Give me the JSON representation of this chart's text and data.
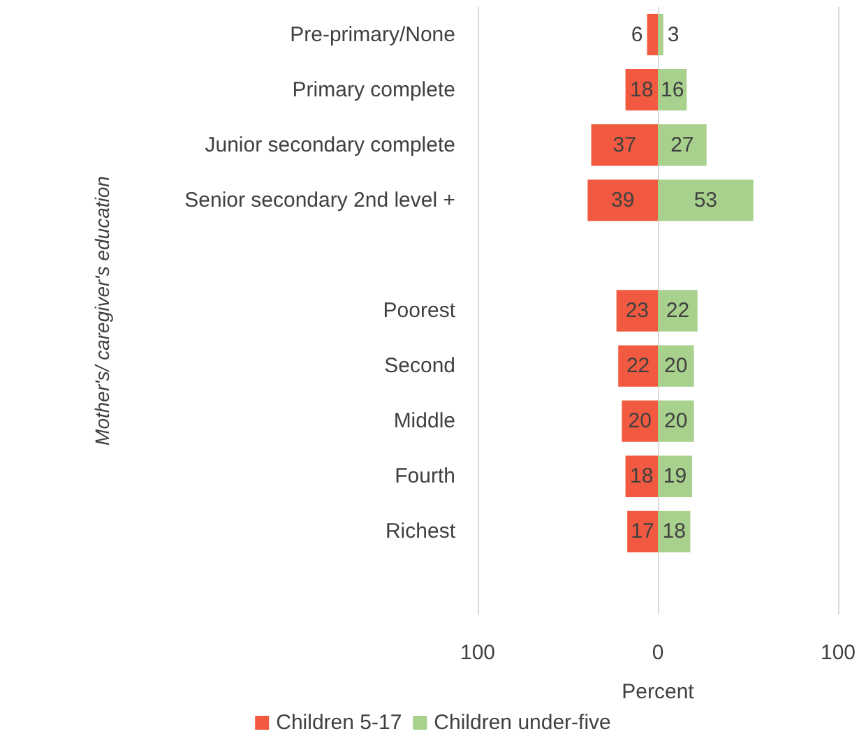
{
  "chart_data": {
    "type": "bar",
    "orientation": "horizontal",
    "xlabel": "Percent",
    "ylabel": "Mother's/ caregiver's education",
    "categories": [
      "Pre-primary/None",
      "Primary complete",
      "Junior secondary complete",
      "Senior secondary 2nd level +",
      null,
      "Poorest",
      "Second",
      "Middle",
      "Fourth",
      "Richest",
      null
    ],
    "series": [
      {
        "name": "Children 5-17",
        "color": "#f15a40",
        "values": [
          6,
          18,
          37,
          39,
          null,
          23,
          22,
          20,
          18,
          17,
          null
        ],
        "base": [
          -6,
          -18,
          -37,
          -39,
          null,
          -23,
          -22,
          -20,
          -18,
          -17,
          null
        ]
      },
      {
        "name": "Children under-five",
        "color": "#a9d18e",
        "values": [
          3,
          16,
          27,
          53,
          null,
          22,
          20,
          20,
          19,
          18,
          null
        ]
      }
    ],
    "data_labels": true,
    "xlim": [
      -100,
      100
    ],
    "xticks": [
      {
        "value": -100,
        "label": "100"
      },
      0,
      100
    ],
    "grid": "x",
    "legend": "bottom"
  }
}
